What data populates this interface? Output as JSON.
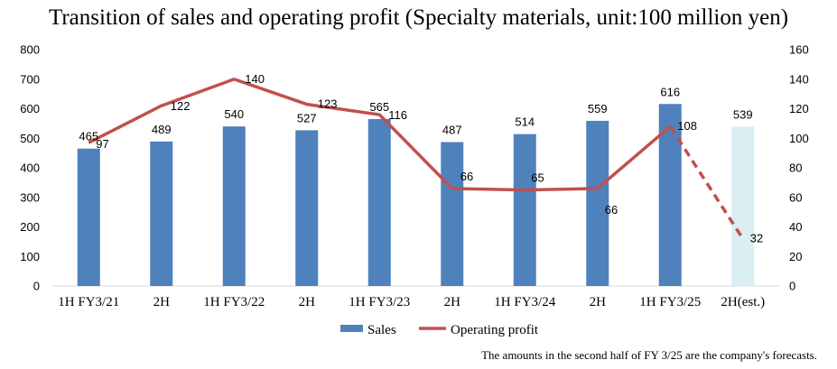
{
  "chart_data": {
    "type": "bar",
    "title": "Transition of sales and operating profit (Specialty materials, unit:100 million yen)",
    "categories": [
      "1H FY3/21",
      "2H",
      "1H FY3/22",
      "2H",
      "1H FY3/23",
      "2H",
      "1H FY3/24",
      "2H",
      "1H FY3/25",
      "2H(est.)"
    ],
    "series": [
      {
        "name": "Sales",
        "type": "bar",
        "axis": "left",
        "values": [
          465,
          489,
          540,
          527,
          565,
          487,
          514,
          559,
          616,
          539
        ],
        "color": "#4f81bd",
        "estimate_color": "#daeef3"
      },
      {
        "name": "Operating profit",
        "type": "line",
        "axis": "right",
        "values": [
          97,
          122,
          140,
          123,
          116,
          66,
          65,
          66,
          108,
          32
        ],
        "color": "#c0504d",
        "last_segment_dashed": true
      }
    ],
    "ylim_left": [
      0,
      800
    ],
    "yticks_left": [
      0,
      100,
      200,
      300,
      400,
      500,
      600,
      700,
      800
    ],
    "ylim_right": [
      0,
      160
    ],
    "yticks_right": [
      0,
      20,
      40,
      60,
      80,
      100,
      120,
      140,
      160
    ],
    "grid": false,
    "legend": "bottom-center"
  },
  "footnote": "The amounts in the second half of FY 3/25 are the company's forecasts."
}
